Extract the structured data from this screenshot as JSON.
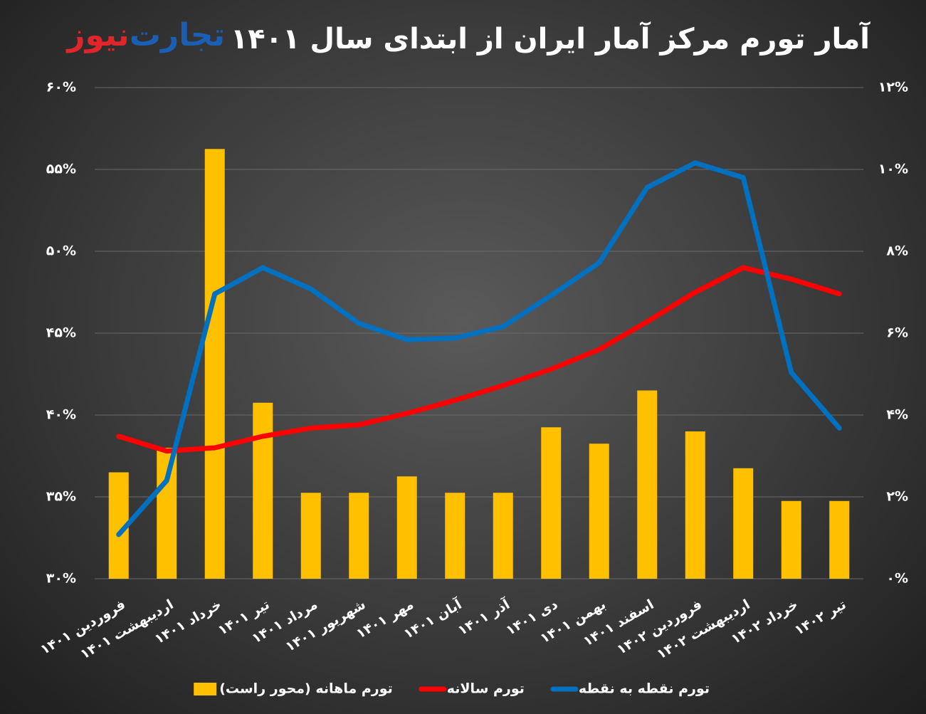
{
  "chart_data": {
    "type": "bar_line",
    "title": "آمار تورم مرکز آمار ایران از ابتدای سال ۱۴۰۱",
    "logo": [
      "تجارت",
      "نیوز"
    ],
    "categories": [
      "فروردین ۱۴۰۱",
      "اردیبهشت ۱۴۰۱",
      "خرداد ۱۴۰۱",
      "تیر ۱۴۰۱",
      "مرداد ۱۴۰۱",
      "شهریور ۱۴۰۱",
      "مهر ۱۴۰۱",
      "آبان ۱۴۰۱",
      "آذر ۱۴۰۱",
      "دی ۱۴۰۱",
      "بهمن ۱۴۰۱",
      "اسفند ۱۴۰۱",
      "فروردین ۱۴۰۲",
      "اردیبهشت ۱۴۰۲",
      "خرداد ۱۴۰۲",
      "تیر ۱۴۰۲"
    ],
    "series": [
      {
        "name": "تورم ماهانه (محور راست)",
        "type": "bar",
        "axis": "y2",
        "color": "#ffc000",
        "values": [
          2.6,
          3.2,
          10.5,
          4.3,
          2.1,
          2.1,
          2.5,
          2.1,
          2.1,
          3.7,
          3.3,
          4.6,
          3.6,
          2.7,
          1.9,
          1.9
        ]
      },
      {
        "name": "تورم سالانه",
        "type": "line",
        "color": "#ff0000",
        "values": [
          38.7,
          37.8,
          38.0,
          38.7,
          39.2,
          39.4,
          40.1,
          40.9,
          41.8,
          42.8,
          44.0,
          45.7,
          47.5,
          49.0,
          48.3,
          47.4
        ]
      },
      {
        "name": "تورم نقطه به نقطه",
        "type": "line",
        "color": "#0070c0",
        "values": [
          32.7,
          36.0,
          47.4,
          49.0,
          47.7,
          45.6,
          44.6,
          44.7,
          45.4,
          47.3,
          49.3,
          53.9,
          55.4,
          54.5,
          42.6,
          39.2
        ]
      }
    ],
    "ylim": [
      30,
      60
    ],
    "yticks": [
      {
        "value": 30,
        "label": "۳۰%"
      },
      {
        "value": 35,
        "label": "۳۵%"
      },
      {
        "value": 40,
        "label": "۴۰%"
      },
      {
        "value": 45,
        "label": "۴۵%"
      },
      {
        "value": 50,
        "label": "۵۰%"
      },
      {
        "value": 55,
        "label": "۵۵%"
      },
      {
        "value": 60,
        "label": "۶۰%"
      }
    ],
    "y2lim": [
      0,
      12
    ],
    "y2ticks": [
      {
        "value": 0,
        "label": "۰%"
      },
      {
        "value": 2,
        "label": "۲%"
      },
      {
        "value": 4,
        "label": "۴%"
      },
      {
        "value": 6,
        "label": "۶%"
      },
      {
        "value": 8,
        "label": "۸%"
      },
      {
        "value": 10,
        "label": "۱۰%"
      },
      {
        "value": 12,
        "label": "۱۲%"
      }
    ],
    "grid": true,
    "legend": "bottom"
  }
}
